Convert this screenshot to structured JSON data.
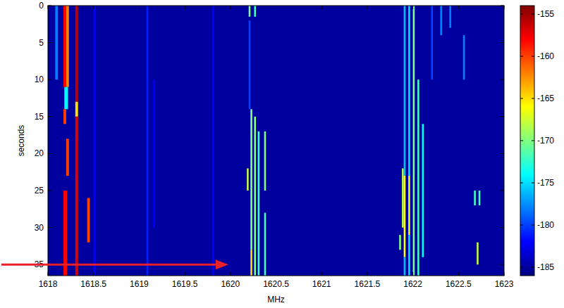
{
  "chart_data": {
    "type": "heatmap",
    "x_label": "MHz",
    "y_label": "seconds",
    "xlim": [
      1618,
      1623
    ],
    "xticks": [
      1618,
      1618.5,
      1619,
      1619.5,
      1620,
      1620.5,
      1621,
      1621.5,
      1622,
      1622.5,
      1623
    ],
    "ylim": [
      0,
      36.5
    ],
    "yticks": [
      0,
      5,
      10,
      15,
      20,
      25,
      30,
      35
    ],
    "background": -185,
    "clim": [
      -186,
      -154
    ],
    "cticks": [
      -185,
      -180,
      -175,
      -170,
      -165,
      -160,
      -155
    ],
    "cells": [
      {
        "x0": 1618.08,
        "x1": 1618.11,
        "y0": 0,
        "y1": 10,
        "value": -178
      },
      {
        "x0": 1618.17,
        "x1": 1618.2,
        "y0": 0,
        "y1": 11,
        "value": -158
      },
      {
        "x0": 1618.2,
        "x1": 1618.23,
        "y0": 0,
        "y1": 11,
        "value": -162
      },
      {
        "x0": 1618.18,
        "x1": 1618.22,
        "y0": 11,
        "y1": 14,
        "value": -174
      },
      {
        "x0": 1618.17,
        "x1": 1618.2,
        "y0": 14,
        "y1": 16,
        "value": -160
      },
      {
        "x0": 1618.2,
        "x1": 1618.23,
        "y0": 18,
        "y1": 23,
        "value": -160
      },
      {
        "x0": 1618.17,
        "x1": 1618.21,
        "y0": 25,
        "y1": 36.5,
        "value": -158
      },
      {
        "x0": 1618.3,
        "x1": 1618.33,
        "y0": 0,
        "y1": 13,
        "value": -156
      },
      {
        "x0": 1618.3,
        "x1": 1618.33,
        "y0": 13,
        "y1": 15,
        "value": -165
      },
      {
        "x0": 1618.3,
        "x1": 1618.33,
        "y0": 15,
        "y1": 36.5,
        "value": -157
      },
      {
        "x0": 1618.43,
        "x1": 1618.46,
        "y0": 26,
        "y1": 32,
        "value": -160
      },
      {
        "x0": 1618.5,
        "x1": 1618.52,
        "y0": 0,
        "y1": 36.5,
        "value": -182
      },
      {
        "x0": 1619.08,
        "x1": 1619.1,
        "y0": 0,
        "y1": 36.5,
        "value": -181
      },
      {
        "x0": 1619.15,
        "x1": 1619.17,
        "y0": 10,
        "y1": 30,
        "value": -182
      },
      {
        "x0": 1619.8,
        "x1": 1619.82,
        "y0": 0,
        "y1": 36.5,
        "value": -182
      },
      {
        "x0": 1620.18,
        "x1": 1620.2,
        "y0": 22,
        "y1": 25,
        "value": -168
      },
      {
        "x0": 1620.2,
        "x1": 1620.22,
        "y0": 0,
        "y1": 1.5,
        "value": -170
      },
      {
        "x0": 1620.2,
        "x1": 1620.22,
        "y0": 2,
        "y1": 14,
        "value": -180
      },
      {
        "x0": 1620.22,
        "x1": 1620.24,
        "y0": 14,
        "y1": 33,
        "value": -170
      },
      {
        "x0": 1620.22,
        "x1": 1620.24,
        "y0": 33,
        "y1": 36.5,
        "value": -165
      },
      {
        "x0": 1620.26,
        "x1": 1620.28,
        "y0": 0,
        "y1": 1.5,
        "value": -172
      },
      {
        "x0": 1620.26,
        "x1": 1620.28,
        "y0": 15,
        "y1": 36.5,
        "value": -170
      },
      {
        "x0": 1620.3,
        "x1": 1620.32,
        "y0": 17,
        "y1": 36.5,
        "value": -172
      },
      {
        "x0": 1620.37,
        "x1": 1620.39,
        "y0": 17,
        "y1": 25,
        "value": -170
      },
      {
        "x0": 1620.37,
        "x1": 1620.39,
        "y0": 28,
        "y1": 36.5,
        "value": -172
      },
      {
        "x0": 1621.85,
        "x1": 1621.87,
        "y0": 31,
        "y1": 33,
        "value": -170
      },
      {
        "x0": 1621.88,
        "x1": 1621.9,
        "y0": 22,
        "y1": 30,
        "value": -168
      },
      {
        "x0": 1621.9,
        "x1": 1621.92,
        "y0": 0,
        "y1": 23,
        "value": -176
      },
      {
        "x0": 1621.9,
        "x1": 1621.92,
        "y0": 23,
        "y1": 34,
        "value": -166
      },
      {
        "x0": 1621.9,
        "x1": 1621.92,
        "y0": 34,
        "y1": 36.5,
        "value": -176
      },
      {
        "x0": 1621.95,
        "x1": 1621.97,
        "y0": 0,
        "y1": 23,
        "value": -175
      },
      {
        "x0": 1621.95,
        "x1": 1621.97,
        "y0": 23,
        "y1": 31,
        "value": -167
      },
      {
        "x0": 1621.95,
        "x1": 1621.97,
        "y0": 31,
        "y1": 36.5,
        "value": -175
      },
      {
        "x0": 1622.0,
        "x1": 1622.02,
        "y0": 0,
        "y1": 36.5,
        "value": -170
      },
      {
        "x0": 1622.05,
        "x1": 1622.07,
        "y0": 10,
        "y1": 36.5,
        "value": -172
      },
      {
        "x0": 1622.1,
        "x1": 1622.12,
        "y0": 16,
        "y1": 34,
        "value": -174
      },
      {
        "x0": 1622.2,
        "x1": 1622.22,
        "y0": 0,
        "y1": 10,
        "value": -180
      },
      {
        "x0": 1622.3,
        "x1": 1622.32,
        "y0": 0,
        "y1": 4,
        "value": -178
      },
      {
        "x0": 1622.4,
        "x1": 1622.42,
        "y0": 0,
        "y1": 3,
        "value": -178
      },
      {
        "x0": 1622.55,
        "x1": 1622.57,
        "y0": 4,
        "y1": 10,
        "value": -178
      },
      {
        "x0": 1622.67,
        "x1": 1622.69,
        "y0": 25,
        "y1": 27,
        "value": -172
      },
      {
        "x0": 1622.72,
        "x1": 1622.74,
        "y0": 25,
        "y1": 27,
        "value": -172
      },
      {
        "x0": 1622.7,
        "x1": 1622.72,
        "y0": 32,
        "y1": 35,
        "value": -168
      }
    ]
  }
}
